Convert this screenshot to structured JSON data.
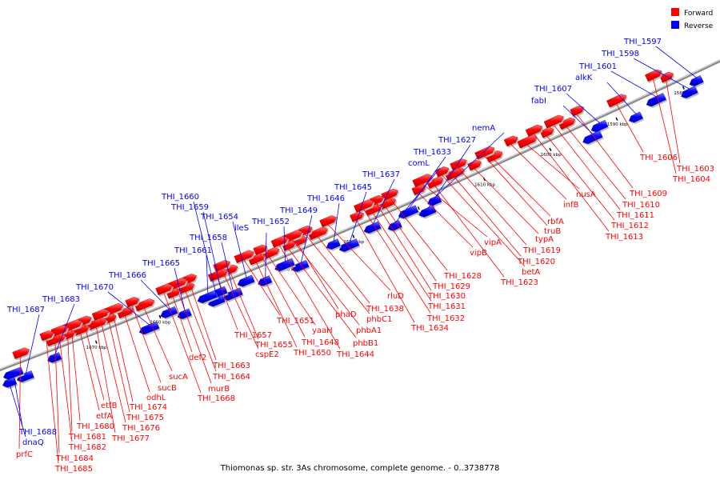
{
  "caption": "Thiomonas sp. str. 3As chromosome, complete genome. - 0..3738778",
  "legend": [
    {
      "label": "Forward",
      "color": "#ff0000"
    },
    {
      "label": "Reverse",
      "color": "#0000ff"
    }
  ],
  "colors": {
    "forward": "#ff0000",
    "reverse": "#0000ff",
    "backbone": "#888888"
  },
  "kbp_marks": [
    {
      "label": "1580 kbp",
      "kbp": 1580
    },
    {
      "label": "1590 kbp",
      "kbp": 1590
    },
    {
      "label": "1600 kbp",
      "kbp": 1600
    },
    {
      "label": "1610 kbp",
      "kbp": 1610
    },
    {
      "label": "1620 kbp",
      "kbp": 1620
    },
    {
      "label": "1630 kbp",
      "kbp": 1630
    },
    {
      "label": "1640 kbp",
      "kbp": 1640
    },
    {
      "label": "1650 kbp",
      "kbp": 1650
    },
    {
      "label": "1660 kbp",
      "kbp": 1660
    },
    {
      "label": "1670 kbp",
      "kbp": 1670
    }
  ],
  "forward_genes": [
    {
      "name": "THI_1603",
      "kbp": 1581.5
    },
    {
      "name": "THI_1604",
      "kbp": 1583.0
    },
    {
      "name": "THI_1606",
      "kbp": 1589.0
    },
    {
      "name": "THI_1609",
      "kbp": 1594.5
    },
    {
      "name": "THI_1610",
      "kbp": 1596.5
    },
    {
      "name": "THI_1611",
      "kbp": 1598.0
    },
    {
      "name": "THI_1612",
      "kbp": 1599.5
    },
    {
      "name": "THI_1613",
      "kbp": 1601.0
    },
    {
      "name": "nusA",
      "kbp": 1602.5
    },
    {
      "name": "infB",
      "kbp": 1604.5
    },
    {
      "name": "rbfA",
      "kbp": 1607.5
    },
    {
      "name": "truB",
      "kbp": 1608.5
    },
    {
      "name": "typA",
      "kbp": 1610.5
    },
    {
      "name": "THI_1619",
      "kbp": 1612.5
    },
    {
      "name": "THI_1620",
      "kbp": 1613.5
    },
    {
      "name": "betA",
      "kbp": 1615.0
    },
    {
      "name": "THI_1623",
      "kbp": 1616.5
    },
    {
      "name": "vipA",
      "kbp": 1618.0
    },
    {
      "name": "vipB",
      "kbp": 1619.0
    },
    {
      "name": "THI_1628",
      "kbp": 1623.0
    },
    {
      "name": "THI_1629",
      "kbp": 1624.0
    },
    {
      "name": "THI_1630",
      "kbp": 1625.0
    },
    {
      "name": "THI_1631",
      "kbp": 1626.0
    },
    {
      "name": "THI_1632",
      "kbp": 1627.0
    },
    {
      "name": "THI_1634",
      "kbp": 1628.5
    },
    {
      "name": "rluD",
      "kbp": 1632.5
    },
    {
      "name": "THI_1638",
      "kbp": 1634.5
    },
    {
      "name": "phbC1",
      "kbp": 1636.0
    },
    {
      "name": "phaD",
      "kbp": 1637.5
    },
    {
      "name": "phbA1",
      "kbp": 1638.0
    },
    {
      "name": "phbB1",
      "kbp": 1639.0
    },
    {
      "name": "THI_1644",
      "kbp": 1640.0
    },
    {
      "name": "yaaH",
      "kbp": 1642.0
    },
    {
      "name": "THI_1648",
      "kbp": 1643.0
    },
    {
      "name": "THI_1650",
      "kbp": 1644.0
    },
    {
      "name": "THI_1651",
      "kbp": 1645.5
    },
    {
      "name": "THI_1655",
      "kbp": 1648.0
    },
    {
      "name": "cspE2",
      "kbp": 1649.0
    },
    {
      "name": "THI_1657",
      "kbp": 1650.0
    },
    {
      "name": "THI_1663",
      "kbp": 1654.0
    },
    {
      "name": "THI_1664",
      "kbp": 1655.0
    },
    {
      "name": "murB",
      "kbp": 1656.0
    },
    {
      "name": "def2",
      "kbp": 1657.0
    },
    {
      "name": "THI_1668",
      "kbp": 1658.0
    },
    {
      "name": "sucA",
      "kbp": 1661.5
    },
    {
      "name": "sucB",
      "kbp": 1663.0
    },
    {
      "name": "odhL",
      "kbp": 1664.5
    },
    {
      "name": "THI_1674",
      "kbp": 1666.0
    },
    {
      "name": "THI_1675",
      "kbp": 1667.0
    },
    {
      "name": "THI_1676",
      "kbp": 1668.0
    },
    {
      "name": "THI_1677",
      "kbp": 1669.0
    },
    {
      "name": "etfB",
      "kbp": 1670.5
    },
    {
      "name": "etfA",
      "kbp": 1671.5
    },
    {
      "name": "THI_1680",
      "kbp": 1672.5
    },
    {
      "name": "THI_1681",
      "kbp": 1673.5
    },
    {
      "name": "THI_1682",
      "kbp": 1674.5
    },
    {
      "name": "THI_1684",
      "kbp": 1675.5
    },
    {
      "name": "THI_1685",
      "kbp": 1676.5
    },
    {
      "name": "prfC",
      "kbp": 1681.0
    }
  ],
  "reverse_genes": [
    {
      "name": "THI_1597",
      "kbp": 1578.0
    },
    {
      "name": "THI_1598",
      "kbp": 1579.5
    },
    {
      "name": "THI_1601",
      "kbp": 1584.0
    },
    {
      "name": "alkK",
      "kbp": 1587.5
    },
    {
      "name": "THI_1607",
      "kbp": 1592.5
    },
    {
      "name": "fabI",
      "kbp": 1594.0
    },
    {
      "name": "nemA",
      "kbp": 1617.5
    },
    {
      "name": "THI_1627",
      "kbp": 1619.0
    },
    {
      "name": "THI_1633",
      "kbp": 1621.5
    },
    {
      "name": "comL",
      "kbp": 1624.0
    },
    {
      "name": "THI_1637",
      "kbp": 1627.0
    },
    {
      "name": "THI_1645",
      "kbp": 1631.0
    },
    {
      "name": "THI_1646",
      "kbp": 1633.0
    },
    {
      "name": "THI_1649",
      "kbp": 1638.5
    },
    {
      "name": "THI_1652",
      "kbp": 1640.5
    },
    {
      "name": "ileS",
      "kbp": 1644.0
    },
    {
      "name": "THI_1654",
      "kbp": 1646.5
    },
    {
      "name": "THI_1658",
      "kbp": 1649.0
    },
    {
      "name": "THI_1659",
      "kbp": 1650.5
    },
    {
      "name": "THI_1660",
      "kbp": 1651.5
    },
    {
      "name": "THI_1661",
      "kbp": 1652.5
    },
    {
      "name": "THI_1665",
      "kbp": 1656.5
    },
    {
      "name": "THI_1666",
      "kbp": 1658.5
    },
    {
      "name": "THI_1670",
      "kbp": 1662.0
    },
    {
      "name": "THI_1683",
      "kbp": 1676.5
    },
    {
      "name": "THI_1687",
      "kbp": 1681.5
    },
    {
      "name": "THI_1688",
      "kbp": 1683.0
    },
    {
      "name": "dnaQ",
      "kbp": 1684.0
    }
  ]
}
